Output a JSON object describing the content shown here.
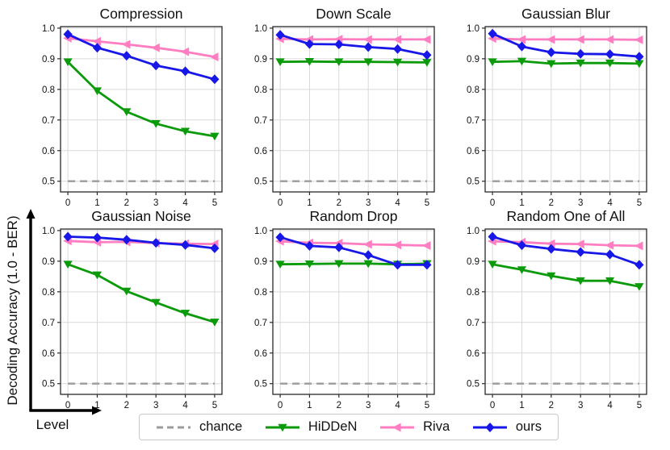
{
  "figure": {
    "ylabel": "Decoding Accuracy (1.0 - BER)",
    "xlabel": "Level",
    "background": "#ffffff",
    "grid_color": "#d9d9d9",
    "spine_color": "#2a2a2a"
  },
  "legend": {
    "position": "bottom",
    "entries": [
      {
        "label": "chance",
        "color": "#9b9b9b",
        "style": "dashed",
        "marker": "none"
      },
      {
        "label": "HiDDeN",
        "color": "#0a9a0a",
        "style": "solid",
        "marker": "triangle-down"
      },
      {
        "label": "Riva",
        "color": "#ff7dc0",
        "style": "solid",
        "marker": "triangle-left"
      },
      {
        "label": "ours",
        "color": "#1717e8",
        "style": "solid",
        "marker": "diamond"
      }
    ]
  },
  "chart_data": [
    {
      "type": "line",
      "title": "Compression",
      "x": [
        0,
        1,
        2,
        3,
        4,
        5
      ],
      "xticks": [
        0,
        1,
        2,
        3,
        4,
        5
      ],
      "ylim": [
        0.465,
        1.005
      ],
      "yticks": [
        0.5,
        0.6,
        0.7,
        0.8,
        0.9,
        1.0
      ],
      "grid": true,
      "series": [
        {
          "name": "chance",
          "values": [
            0.5,
            0.5,
            0.5,
            0.5,
            0.5,
            0.5
          ]
        },
        {
          "name": "HiDDeN",
          "values": [
            0.89,
            0.795,
            0.727,
            0.688,
            0.663,
            0.647
          ]
        },
        {
          "name": "Riva",
          "values": [
            0.967,
            0.957,
            0.947,
            0.936,
            0.923,
            0.906
          ]
        },
        {
          "name": "ours",
          "values": [
            0.98,
            0.936,
            0.91,
            0.878,
            0.859,
            0.833
          ]
        }
      ]
    },
    {
      "type": "line",
      "title": "Down Scale",
      "x": [
        0,
        1,
        2,
        3,
        4,
        5
      ],
      "xticks": [
        0,
        1,
        2,
        3,
        4,
        5
      ],
      "ylim": [
        0.465,
        1.005
      ],
      "yticks": [
        0.5,
        0.6,
        0.7,
        0.8,
        0.9,
        1.0
      ],
      "grid": true,
      "series": [
        {
          "name": "chance",
          "values": [
            0.5,
            0.5,
            0.5,
            0.5,
            0.5,
            0.5
          ]
        },
        {
          "name": "HiDDeN",
          "values": [
            0.89,
            0.891,
            0.89,
            0.89,
            0.889,
            0.888
          ]
        },
        {
          "name": "Riva",
          "values": [
            0.965,
            0.963,
            0.964,
            0.963,
            0.963,
            0.963
          ]
        },
        {
          "name": "ours",
          "values": [
            0.978,
            0.948,
            0.947,
            0.938,
            0.932,
            0.912
          ]
        }
      ]
    },
    {
      "type": "line",
      "title": "Gaussian Blur",
      "x": [
        0,
        1,
        2,
        3,
        4,
        5
      ],
      "xticks": [
        0,
        1,
        2,
        3,
        4,
        5
      ],
      "ylim": [
        0.465,
        1.005
      ],
      "yticks": [
        0.5,
        0.6,
        0.7,
        0.8,
        0.9,
        1.0
      ],
      "grid": true,
      "series": [
        {
          "name": "chance",
          "values": [
            0.5,
            0.5,
            0.5,
            0.5,
            0.5,
            0.5
          ]
        },
        {
          "name": "HiDDeN",
          "values": [
            0.89,
            0.892,
            0.884,
            0.886,
            0.886,
            0.884
          ]
        },
        {
          "name": "Riva",
          "values": [
            0.966,
            0.963,
            0.963,
            0.963,
            0.963,
            0.962
          ]
        },
        {
          "name": "ours",
          "values": [
            0.982,
            0.94,
            0.921,
            0.916,
            0.915,
            0.907
          ]
        }
      ]
    },
    {
      "type": "line",
      "title": "Gaussian Noise",
      "x": [
        0,
        1,
        2,
        3,
        4,
        5
      ],
      "xticks": [
        0,
        1,
        2,
        3,
        4,
        5
      ],
      "ylim": [
        0.465,
        1.005
      ],
      "yticks": [
        0.5,
        0.6,
        0.7,
        0.8,
        0.9,
        1.0
      ],
      "grid": true,
      "series": [
        {
          "name": "chance",
          "values": [
            0.5,
            0.5,
            0.5,
            0.5,
            0.5,
            0.5
          ]
        },
        {
          "name": "HiDDeN",
          "values": [
            0.89,
            0.855,
            0.802,
            0.765,
            0.73,
            0.701
          ]
        },
        {
          "name": "Riva",
          "values": [
            0.966,
            0.962,
            0.963,
            0.959,
            0.957,
            0.956
          ]
        },
        {
          "name": "ours",
          "values": [
            0.98,
            0.977,
            0.97,
            0.96,
            0.953,
            0.942
          ]
        }
      ]
    },
    {
      "type": "line",
      "title": "Random Drop",
      "x": [
        0,
        1,
        2,
        3,
        4,
        5
      ],
      "xticks": [
        0,
        1,
        2,
        3,
        4,
        5
      ],
      "ylim": [
        0.465,
        1.005
      ],
      "yticks": [
        0.5,
        0.6,
        0.7,
        0.8,
        0.9,
        1.0
      ],
      "grid": true,
      "series": [
        {
          "name": "chance",
          "values": [
            0.5,
            0.5,
            0.5,
            0.5,
            0.5,
            0.5
          ]
        },
        {
          "name": "HiDDeN",
          "values": [
            0.89,
            0.891,
            0.892,
            0.892,
            0.89,
            0.892
          ]
        },
        {
          "name": "Riva",
          "values": [
            0.965,
            0.96,
            0.959,
            0.955,
            0.953,
            0.951
          ]
        },
        {
          "name": "ours",
          "values": [
            0.978,
            0.95,
            0.945,
            0.92,
            0.888,
            0.888
          ]
        }
      ]
    },
    {
      "type": "line",
      "title": "Random One of All",
      "x": [
        0,
        1,
        2,
        3,
        4,
        5
      ],
      "xticks": [
        0,
        1,
        2,
        3,
        4,
        5
      ],
      "ylim": [
        0.465,
        1.005
      ],
      "yticks": [
        0.5,
        0.6,
        0.7,
        0.8,
        0.9,
        1.0
      ],
      "grid": true,
      "series": [
        {
          "name": "chance",
          "values": [
            0.5,
            0.5,
            0.5,
            0.5,
            0.5,
            0.5
          ]
        },
        {
          "name": "HiDDeN",
          "values": [
            0.89,
            0.872,
            0.852,
            0.836,
            0.836,
            0.817
          ]
        },
        {
          "name": "Riva",
          "values": [
            0.965,
            0.962,
            0.957,
            0.956,
            0.952,
            0.95
          ]
        },
        {
          "name": "ours",
          "values": [
            0.98,
            0.952,
            0.94,
            0.93,
            0.922,
            0.888
          ]
        }
      ]
    }
  ]
}
